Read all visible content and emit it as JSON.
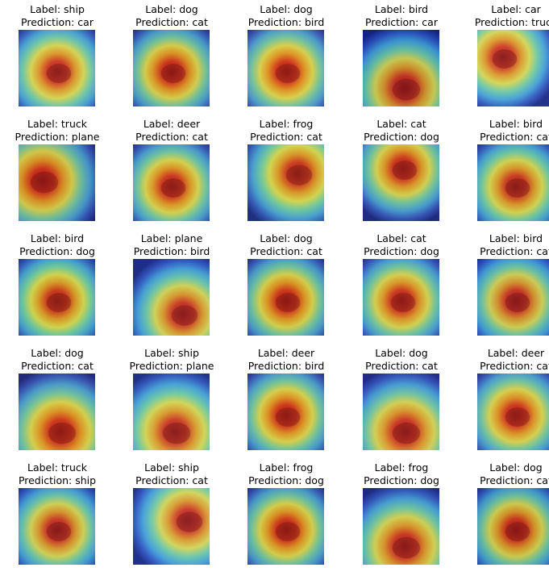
{
  "grid": {
    "rows": 5,
    "cols": 5,
    "cells": [
      {
        "label": "Label: ship",
        "prediction": "Prediction: car",
        "heat": "center",
        "base": "#7a7a76"
      },
      {
        "label": "Label: dog",
        "prediction": "Prediction: cat",
        "heat": "center",
        "base": "#6b4a3a"
      },
      {
        "label": "Label: dog",
        "prediction": "Prediction: bird",
        "heat": "center",
        "base": "#8a6040"
      },
      {
        "label": "Label: bird",
        "prediction": "Prediction: car",
        "heat": "bottom",
        "base": "#20305a"
      },
      {
        "label": "Label: car",
        "prediction": "Prediction: truck",
        "heat": "topleft",
        "base": "#808890"
      },
      {
        "label": "Label: truck",
        "prediction": "Prediction: plane",
        "heat": "left",
        "base": "#5a3030"
      },
      {
        "label": "Label: deer",
        "prediction": "Prediction: cat",
        "heat": "center",
        "base": "#70604a"
      },
      {
        "label": "Label: frog",
        "prediction": "Prediction: cat",
        "heat": "topright",
        "base": "#6a7a50"
      },
      {
        "label": "Label: cat",
        "prediction": "Prediction: dog",
        "heat": "top",
        "base": "#6a5848"
      },
      {
        "label": "Label: bird",
        "prediction": "Prediction: cat",
        "heat": "center",
        "base": "#5a6a5a"
      },
      {
        "label": "Label: bird",
        "prediction": "Prediction: dog",
        "heat": "center",
        "base": "#5a7040"
      },
      {
        "label": "Label: plane",
        "prediction": "Prediction: bird",
        "heat": "bottomright",
        "base": "#5a6a80"
      },
      {
        "label": "Label: dog",
        "prediction": "Prediction: cat",
        "heat": "center",
        "base": "#6a5030"
      },
      {
        "label": "Label: cat",
        "prediction": "Prediction: dog",
        "heat": "center",
        "base": "#6a5a50"
      },
      {
        "label": "Label: bird",
        "prediction": "Prediction: cat",
        "heat": "center",
        "base": "#404a70"
      },
      {
        "label": "Label: dog",
        "prediction": "Prediction: cat",
        "heat": "bottom",
        "base": "#7a5a3a"
      },
      {
        "label": "Label: ship",
        "prediction": "Prediction: plane",
        "heat": "bottom",
        "base": "#6a8080"
      },
      {
        "label": "Label: deer",
        "prediction": "Prediction: bird",
        "heat": "center",
        "base": "#7a5a3a"
      },
      {
        "label": "Label: dog",
        "prediction": "Prediction: cat",
        "heat": "bottom",
        "base": "#6a6070"
      },
      {
        "label": "Label: deer",
        "prediction": "Prediction: cat",
        "heat": "center",
        "base": "#7a6050"
      },
      {
        "label": "Label: truck",
        "prediction": "Prediction: ship",
        "heat": "center",
        "base": "#505a70"
      },
      {
        "label": "Label: ship",
        "prediction": "Prediction: cat",
        "heat": "right",
        "base": "#7080a0"
      },
      {
        "label": "Label: frog",
        "prediction": "Prediction: dog",
        "heat": "center",
        "base": "#6a5030"
      },
      {
        "label": "Label: frog",
        "prediction": "Prediction: dog",
        "heat": "bottom",
        "base": "#5a5a60"
      },
      {
        "label": "Label: dog",
        "prediction": "Prediction: cat",
        "heat": "center",
        "base": "#403a40"
      }
    ]
  }
}
